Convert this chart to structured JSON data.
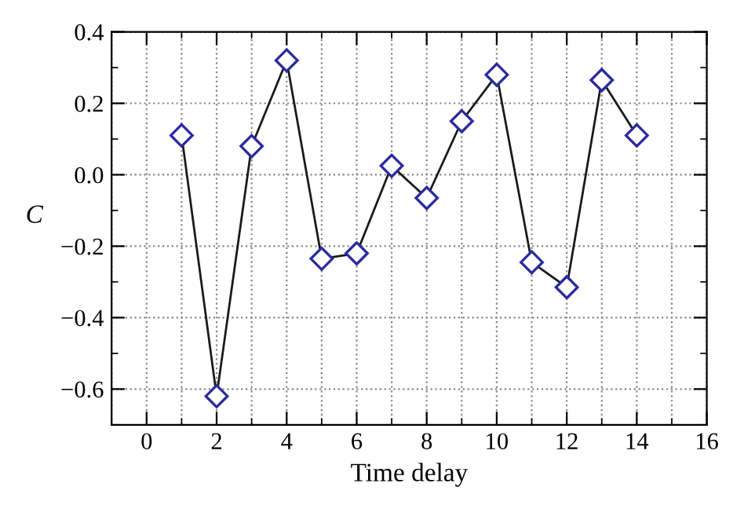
{
  "chart_data": {
    "type": "line",
    "xlabel": "Time delay",
    "ylabel": "C",
    "x": [
      1,
      2,
      3,
      4,
      5,
      6,
      7,
      8,
      9,
      10,
      11,
      12,
      13,
      14
    ],
    "series": [
      {
        "color": "#2b2b9e",
        "values": [
          0.11,
          -0.62,
          0.08,
          0.32,
          -0.235,
          -0.22,
          0.025,
          -0.065,
          0.15,
          0.28,
          -0.245,
          -0.315,
          0.265,
          0.11
        ]
      }
    ],
    "xlim": [
      -1,
      16
    ],
    "xticks": [
      0,
      2,
      4,
      6,
      8,
      10,
      12,
      14,
      16
    ],
    "ylim": [
      -0.7,
      0.4
    ],
    "yticks": [
      {
        "value": -0.6,
        "label": "−0.6"
      },
      {
        "value": -0.4,
        "label": "−0.4"
      },
      {
        "value": -0.2,
        "label": "−0.2"
      },
      {
        "value": 0,
        "label": "0.0"
      },
      {
        "value": 0.2,
        "label": "0.2"
      },
      {
        "value": 0.4,
        "label": "0.4"
      }
    ],
    "grid": true,
    "marker": "diamond",
    "line_style": "solid",
    "legend": false
  }
}
